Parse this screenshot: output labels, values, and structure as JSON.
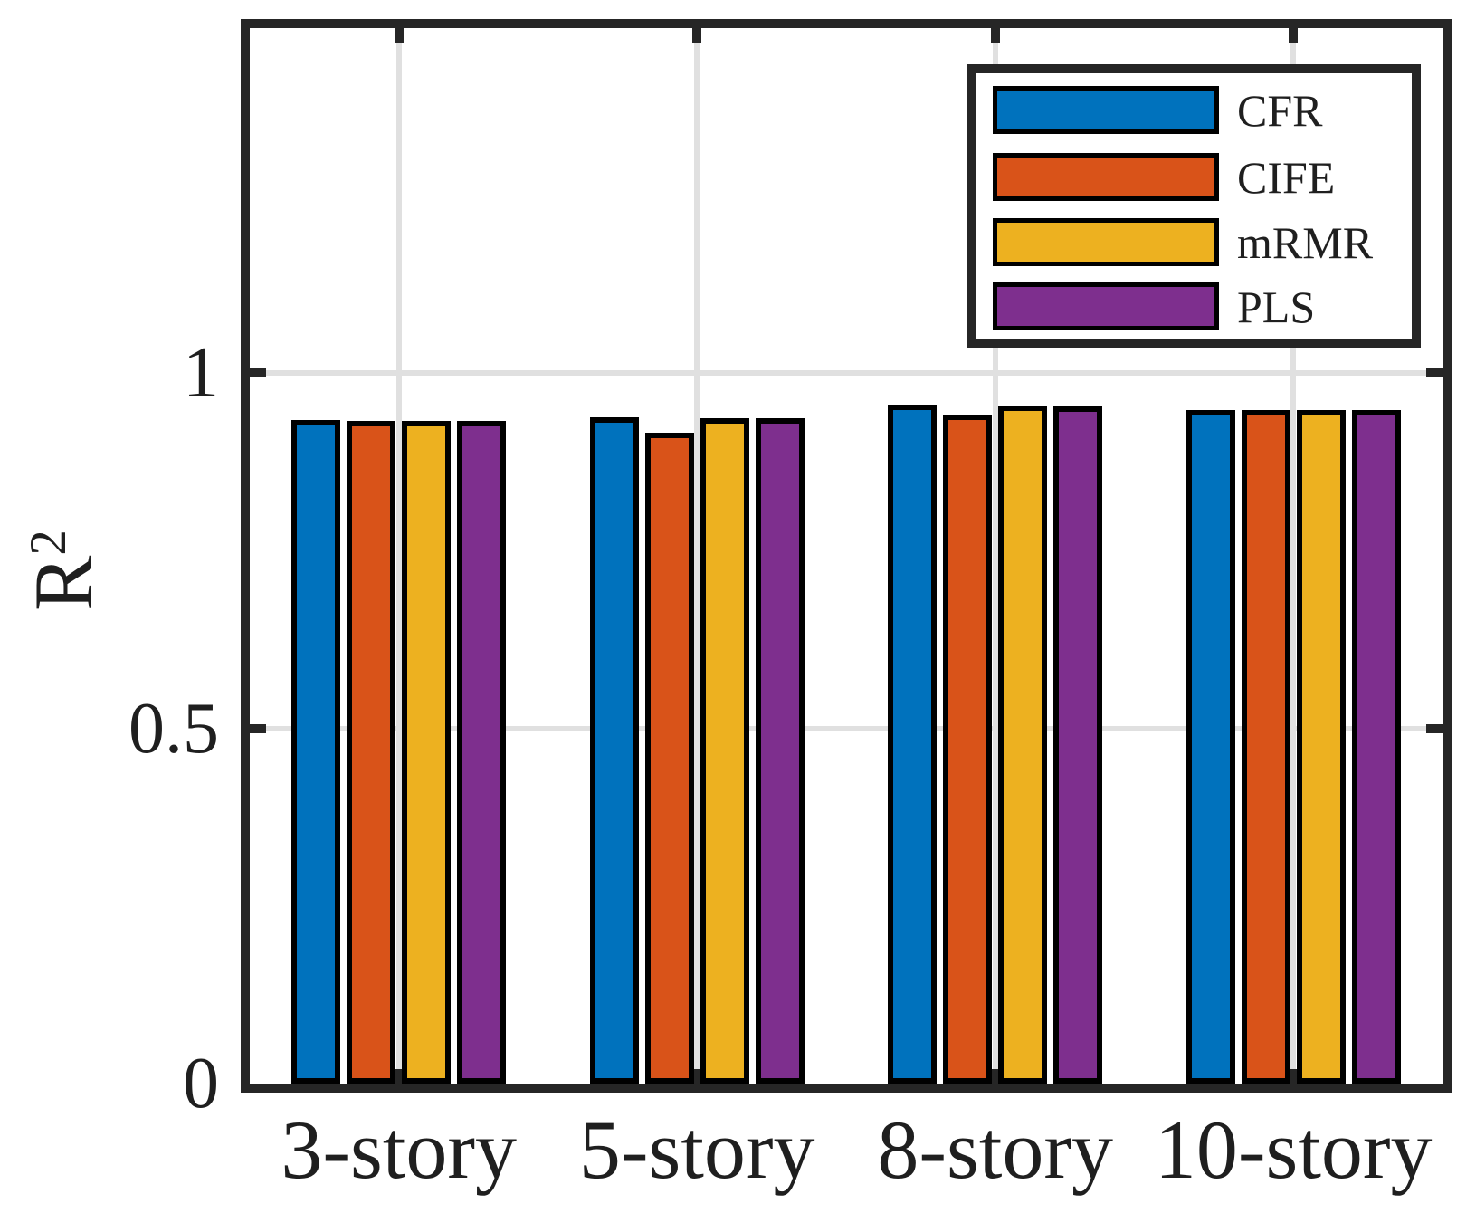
{
  "chart_data": {
    "type": "bar",
    "title": "",
    "ylabel_base": "R",
    "ylabel_sup": "2",
    "categories": [
      "3-story",
      "5-story",
      "8-story",
      "10-story"
    ],
    "series": [
      {
        "name": "CFR",
        "color": "#0072BD",
        "values": [
          0.934,
          0.937,
          0.956,
          0.948
        ]
      },
      {
        "name": "CIFE",
        "color": "#D95319",
        "values": [
          0.933,
          0.916,
          0.941,
          0.948
        ]
      },
      {
        "name": "mRMR",
        "color": "#EDB120",
        "values": [
          0.933,
          0.936,
          0.954,
          0.948
        ]
      },
      {
        "name": "PLS",
        "color": "#7E2F8E",
        "values": [
          0.933,
          0.936,
          0.953,
          0.948
        ]
      }
    ],
    "yticks": [
      0,
      0.5,
      1
    ],
    "ytick_labels": [
      "0",
      "0.5",
      "1"
    ],
    "ylim": [
      0,
      1.49
    ],
    "grid": true,
    "grid_color": "#e0e0e0",
    "axis_color": "#262626",
    "bar_edge_color": "#000000",
    "background": "#ffffff",
    "legend_position": "top-right"
  }
}
